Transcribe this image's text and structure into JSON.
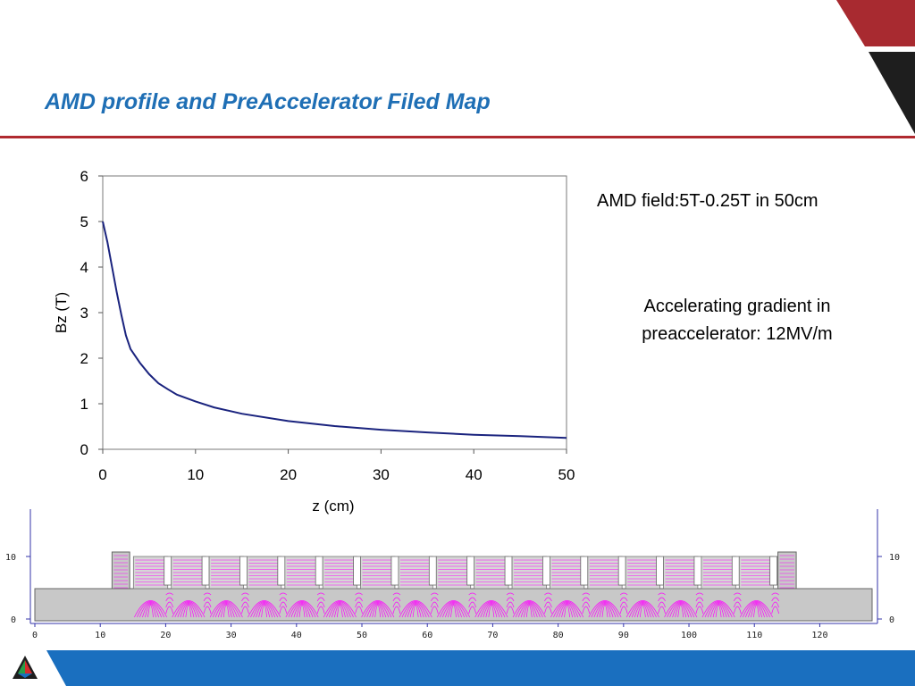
{
  "slide": {
    "title": "AMD profile and PreAccelerator Filed Map",
    "notes": [
      "AMD field:5T-0.25T in 50cm",
      "Accelerating gradient in preaccelerator: 12MV/m"
    ],
    "colors": {
      "title": "#1f6fb5",
      "rule": "#b02a30",
      "corner_red": "#a82a30",
      "corner_dark": "#1e1e1e",
      "footer_blue": "#1a6fbf",
      "curve": "#1a237e",
      "field_lines": "#ff00ff"
    }
  },
  "chart_data": [
    {
      "type": "line",
      "title": "",
      "xlabel": "z (cm)",
      "ylabel": "Bz (T)",
      "xlim": [
        0,
        50
      ],
      "ylim": [
        0,
        6
      ],
      "xticks": [
        0,
        10,
        20,
        30,
        40,
        50
      ],
      "yticks": [
        0,
        1,
        2,
        3,
        4,
        5,
        6
      ],
      "grid": false,
      "series": [
        {
          "x": [
            0,
            0.5,
            1,
            1.5,
            2,
            2.5,
            3,
            4,
            5,
            6,
            7,
            8,
            10,
            12,
            15,
            20,
            25,
            30,
            35,
            40,
            45,
            50
          ],
          "y": [
            5.0,
            4.55,
            4.0,
            3.45,
            2.95,
            2.5,
            2.2,
            1.9,
            1.65,
            1.45,
            1.32,
            1.2,
            1.05,
            0.92,
            0.78,
            0.62,
            0.51,
            0.43,
            0.37,
            0.32,
            0.29,
            0.25
          ]
        }
      ]
    },
    {
      "type": "field map",
      "xticks": [
        0,
        10,
        20,
        30,
        40,
        50,
        60,
        70,
        80,
        90,
        100,
        110,
        120
      ],
      "yticks": [
        0,
        10
      ],
      "cavity_count": 17
    }
  ]
}
